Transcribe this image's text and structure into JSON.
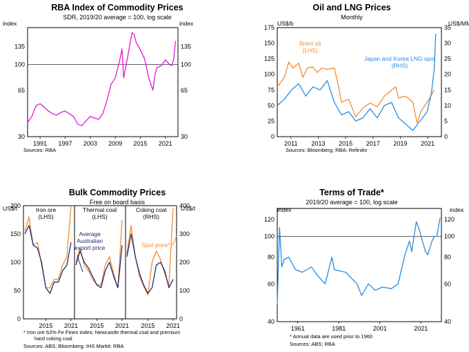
{
  "colors": {
    "magenta": "#e21ad4",
    "orange": "#f28c2b",
    "blue": "#2b8be0",
    "navy": "#1e2a7a",
    "axis": "#000000",
    "panel_bg": "#ffffff"
  },
  "chart_data": [
    {
      "type": "line",
      "title": "RBA Index of Commodity Prices",
      "subtitle": "SDR, 2019/20 average = 100, log scale",
      "ylabel_left": "index",
      "ylabel_right": "index",
      "log_scale": true,
      "ylim": [
        30,
        185
      ],
      "xlim": [
        1986,
        2022
      ],
      "yticks": [
        30,
        65,
        100,
        135
      ],
      "xticks": [
        "1991",
        "1997",
        "2003",
        "2009",
        "2015",
        "2021"
      ],
      "series": [
        {
          "color": "#e21ad4",
          "x": [
            1986,
            1987,
            1988,
            1989,
            1990,
            1991,
            1992,
            1993,
            1994,
            1995,
            1996,
            1997,
            1998,
            1999,
            2000,
            2001,
            2002,
            2003,
            2004,
            2005,
            2006,
            2007,
            2008,
            2008.6,
            2009,
            2010,
            2011,
            2011.5,
            2012,
            2013,
            2014,
            2015,
            2016,
            2016.5,
            2017,
            2018,
            2019,
            2020,
            2020.5,
            2021,
            2021.4
          ],
          "y": [
            38,
            42,
            50,
            52,
            49,
            46,
            44,
            43,
            45,
            46,
            44,
            42,
            37,
            36,
            39,
            42,
            41,
            40,
            44,
            55,
            72,
            80,
            105,
            130,
            80,
            115,
            170,
            165,
            145,
            128,
            110,
            80,
            65,
            85,
            95,
            98,
            108,
            100,
            98,
            110,
            148
          ]
        }
      ],
      "source": "Sources:    RBA"
    },
    {
      "type": "line",
      "title": "Oil and LNG Prices",
      "subtitle": "Monthly",
      "ylabel_left": "US$/b",
      "ylabel_right": "US$/MMBtu",
      "ylim_left": [
        0,
        175
      ],
      "ylim_right": [
        0,
        35
      ],
      "xlim": [
        2010.5,
        2022
      ],
      "yticks_left": [
        0,
        25,
        50,
        75,
        100,
        125,
        150,
        175
      ],
      "yticks_right": [
        0,
        5,
        10,
        15,
        20,
        25,
        30,
        35
      ],
      "xticks": [
        "2011",
        "2013",
        "2015",
        "2017",
        "2019",
        "2021"
      ],
      "series": [
        {
          "name": "Brent oil (LHS)",
          "axis": "left",
          "color": "#f28c2b",
          "x": [
            2010.5,
            2011,
            2011.3,
            2011.6,
            2012,
            2012.3,
            2012.6,
            2013,
            2013.3,
            2013.6,
            2014,
            2014.5,
            2014.8,
            2015,
            2015.5,
            2016,
            2016.5,
            2017,
            2017.5,
            2018,
            2018.8,
            2019,
            2019.5,
            2020,
            2020.3,
            2020.6,
            2021,
            2021.5
          ],
          "y": [
            80,
            95,
            120,
            110,
            118,
            95,
            110,
            112,
            103,
            110,
            108,
            110,
            80,
            55,
            60,
            32,
            46,
            54,
            48,
            65,
            80,
            62,
            65,
            55,
            22,
            42,
            55,
            75
          ]
        },
        {
          "name": "Japan and Korea LNG spot (RHS)",
          "axis": "right",
          "color": "#2b8be0",
          "x": [
            2010.5,
            2011,
            2011.5,
            2012,
            2012.5,
            2013,
            2013.5,
            2014,
            2014.5,
            2015,
            2015.5,
            2016,
            2016.5,
            2017,
            2017.5,
            2018,
            2018.5,
            2019,
            2019.5,
            2020,
            2020.5,
            2021,
            2021.3,
            2021.5,
            2021.6
          ],
          "y": [
            10,
            12,
            15,
            17,
            13,
            16,
            15,
            18,
            11,
            7,
            8,
            5,
            6,
            9,
            6,
            10,
            11,
            6,
            4,
            2,
            5,
            8,
            14,
            22,
            33
          ]
        }
      ],
      "source": "Sources:    Bloomberg; RBA; Refinitiv"
    },
    {
      "type": "line",
      "title": "Bulk Commodity Prices",
      "subtitle": "Free on board basis",
      "ylabel_left": "US$/t",
      "ylabel_right": "US$/t",
      "ylim_left": [
        0,
        200
      ],
      "ylim_right": [
        0,
        400
      ],
      "yticks_left": [
        0,
        50,
        100,
        150,
        200
      ],
      "yticks_right": [
        0,
        100,
        200,
        300,
        400
      ],
      "panels": [
        {
          "label": "Iron ore",
          "axis": "(LHS)",
          "xticks": [
            "2015",
            "2021"
          ]
        },
        {
          "label": "Thermal coal",
          "axis": "(LHS)",
          "xticks": [
            "2015",
            "2021"
          ]
        },
        {
          "label": "Coking coal",
          "axis": "(RHS)",
          "xticks": [
            "2015",
            "2021"
          ]
        }
      ],
      "series": [
        {
          "name": "Average Australian export price",
          "color": "#1e2a7a",
          "x": [
            2010,
            2011,
            2012,
            2013,
            2014,
            2015,
            2016,
            2017,
            2018,
            2019,
            2020,
            2021
          ],
          "iron_ore": [
            150,
            165,
            130,
            125,
            100,
            55,
            45,
            65,
            65,
            85,
            95,
            135
          ],
          "thermal_coal": [
            95,
            120,
            100,
            90,
            75,
            60,
            55,
            85,
            100,
            75,
            55,
            130
          ],
          "coking_coal": [
            220,
            300,
            220,
            160,
            120,
            90,
            110,
            190,
            200,
            170,
            110,
            140
          ]
        },
        {
          "name": "Spot price*",
          "color": "#f28c2b",
          "x": [
            2010,
            2011,
            2012,
            2013,
            2014,
            2015,
            2016,
            2017,
            2018,
            2019,
            2020,
            2021
          ],
          "iron_ore": [
            155,
            180,
            130,
            135,
            95,
            55,
            55,
            70,
            70,
            95,
            110,
            200
          ],
          "thermal_coal": [
            100,
            125,
            95,
            85,
            70,
            60,
            60,
            95,
            110,
            80,
            55,
            175
          ],
          "coking_coal": [
            230,
            330,
            220,
            150,
            115,
            85,
            200,
            240,
            210,
            160,
            120,
            390
          ]
        }
      ],
      "note": [
        "*        Iron ore 62% Fe Fines Index; Newcastle thermal coal and premium",
        "hard coking coal"
      ],
      "source": "Sources:    ABS; Bloomberg; IHS Markit; RBA"
    },
    {
      "type": "line",
      "title": "Terms of Trade*",
      "subtitle": "2019/20 average = 100, log scale",
      "ylabel_left": "index",
      "ylabel_right": "index",
      "log_scale": true,
      "ylim": [
        40,
        135
      ],
      "xlim": [
        1950,
        2022
      ],
      "yticks": [
        40,
        60,
        80,
        100,
        120
      ],
      "xticks": [
        "1961",
        "1981",
        "2001",
        "2021"
      ],
      "series": [
        {
          "color": "#2b8be0",
          "x": [
            1950,
            1951,
            1952,
            1953,
            1955,
            1958,
            1961,
            1965,
            1968,
            1971,
            1974,
            1975,
            1980,
            1985,
            1987,
            1990,
            1993,
            1996,
            2000,
            2003,
            2006,
            2008,
            2009,
            2011,
            2012,
            2015,
            2016,
            2018,
            2019,
            2020,
            2021.4
          ],
          "y": [
            48,
            110,
            72,
            78,
            80,
            70,
            68,
            72,
            65,
            60,
            80,
            70,
            68,
            60,
            53,
            60,
            56,
            58,
            57,
            60,
            82,
            95,
            85,
            117,
            110,
            85,
            82,
            96,
            100,
            100,
            122
          ]
        }
      ],
      "note": [
        "*        Annual data are used prior to 1960"
      ],
      "source": "Sources:    ABS; RBA"
    }
  ],
  "labels": {
    "brent": [
      "Brent oil",
      "(LHS)"
    ],
    "lng": [
      "Japan and Korea LNG spot",
      "(RHS)"
    ],
    "iron_ore": [
      "Iron ore",
      "(LHS)"
    ],
    "thermal": [
      "Thermal coal",
      "(LHS)"
    ],
    "coking": [
      "Coking coal",
      "(RHS)"
    ],
    "avg_export": [
      "Average",
      "Australian",
      "export price"
    ],
    "spot": "Spot price*"
  }
}
